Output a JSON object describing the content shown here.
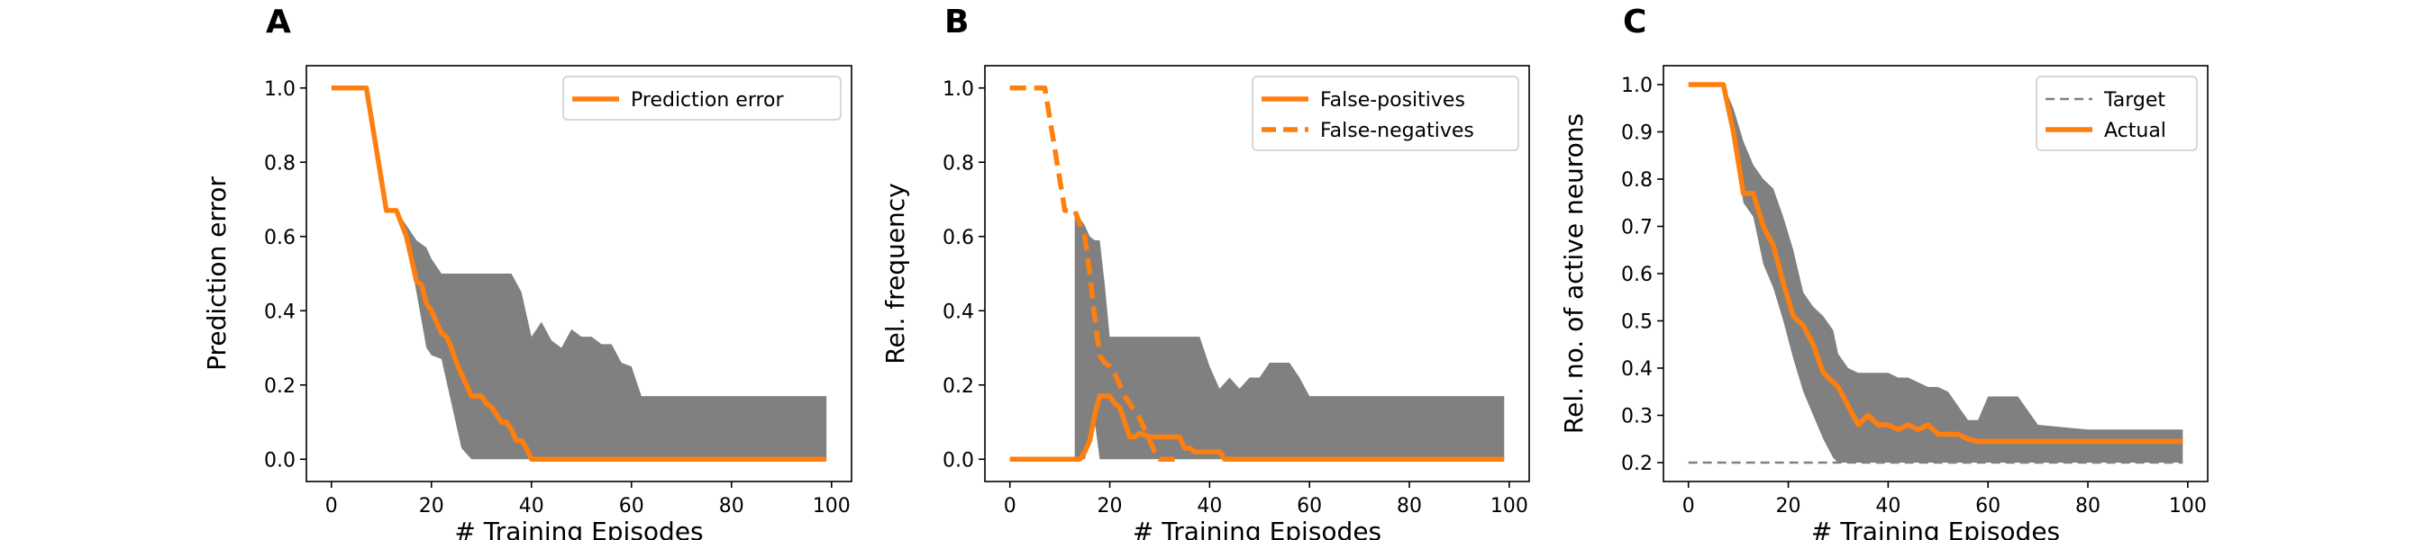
{
  "chart_data": [
    {
      "type": "line",
      "panel_label": "A",
      "ylabel": "Prediction error",
      "xlabel": "# Training Episodes",
      "xlim": [
        -5,
        104
      ],
      "ylim": [
        -0.06,
        1.06
      ],
      "xticks": [
        0,
        20,
        40,
        60,
        80,
        100
      ],
      "xtick_labels": [
        "0",
        "20",
        "40",
        "60",
        "80",
        "100"
      ],
      "yticks": [
        0.0,
        0.2,
        0.4,
        0.6,
        0.8,
        1.0
      ],
      "ytick_labels": [
        "0.0",
        "0.2",
        "0.4",
        "0.6",
        "0.8",
        "1.0"
      ],
      "legend_position": "upper right",
      "bands": [
        {
          "color": "#808080",
          "x": [
            0,
            7,
            11,
            13,
            15,
            17,
            19,
            20,
            22,
            24,
            26,
            28,
            30,
            32,
            34,
            36,
            38,
            40,
            42,
            44,
            46,
            48,
            50,
            52,
            54,
            56,
            58,
            60,
            62,
            70,
            80,
            90,
            99
          ],
          "lower": [
            1.0,
            1.0,
            0.67,
            0.67,
            0.6,
            0.45,
            0.3,
            0.28,
            0.27,
            0.15,
            0.03,
            0.0,
            0.0,
            0.0,
            0.0,
            0.0,
            0.0,
            0.0,
            0.0,
            0.0,
            0.0,
            0.0,
            0.0,
            0.0,
            0.0,
            0.0,
            0.0,
            0.0,
            0.0,
            0.0,
            0.0,
            0.0,
            0.0
          ],
          "upper": [
            1.0,
            1.0,
            0.67,
            0.67,
            0.63,
            0.59,
            0.57,
            0.54,
            0.5,
            0.5,
            0.5,
            0.5,
            0.5,
            0.5,
            0.5,
            0.5,
            0.45,
            0.33,
            0.37,
            0.32,
            0.3,
            0.35,
            0.33,
            0.33,
            0.31,
            0.31,
            0.26,
            0.25,
            0.17,
            0.17,
            0.17,
            0.17,
            0.17
          ]
        }
      ],
      "series": [
        {
          "name": "Prediction error",
          "color": "#ff7f0e",
          "style": "solid",
          "x": [
            0,
            7,
            11,
            13,
            15,
            16,
            17,
            18,
            19,
            20,
            21,
            22,
            23,
            24,
            25,
            26,
            27,
            28,
            29,
            30,
            31,
            32,
            33,
            34,
            35,
            36,
            37,
            38,
            39,
            40,
            41,
            42,
            43,
            50,
            60,
            70,
            80,
            90,
            99
          ],
          "y": [
            1.0,
            1.0,
            0.67,
            0.67,
            0.6,
            0.54,
            0.48,
            0.47,
            0.42,
            0.4,
            0.37,
            0.34,
            0.33,
            0.3,
            0.26,
            0.23,
            0.2,
            0.17,
            0.17,
            0.17,
            0.15,
            0.14,
            0.12,
            0.1,
            0.1,
            0.08,
            0.05,
            0.05,
            0.03,
            0.0,
            0.0,
            0.0,
            0.0,
            0.0,
            0.0,
            0.0,
            0.0,
            0.0,
            0.0
          ]
        }
      ]
    },
    {
      "type": "line",
      "panel_label": "B",
      "ylabel": "Rel. frequency",
      "xlabel": "# Training Episodes",
      "xlim": [
        -5,
        104
      ],
      "ylim": [
        -0.06,
        1.06
      ],
      "xticks": [
        0,
        20,
        40,
        60,
        80,
        100
      ],
      "xtick_labels": [
        "0",
        "20",
        "40",
        "60",
        "80",
        "100"
      ],
      "yticks": [
        0.0,
        0.2,
        0.4,
        0.6,
        0.8,
        1.0
      ],
      "ytick_labels": [
        "0.0",
        "0.2",
        "0.4",
        "0.6",
        "0.8",
        "1.0"
      ],
      "legend_position": "upper right",
      "bands": [
        {
          "color": "#808080",
          "x": [
            13,
            15,
            16,
            17,
            18,
            19,
            20,
            21,
            22,
            23,
            24,
            26,
            28,
            30,
            32,
            34,
            36,
            38,
            40,
            42,
            44,
            46,
            48,
            50,
            52,
            54,
            56,
            58,
            60,
            62,
            70,
            80,
            90,
            99
          ],
          "lower": [
            0.0,
            0.0,
            0.05,
            0.1,
            0.0,
            0.0,
            0.0,
            0.0,
            0.0,
            0.0,
            0.0,
            0.0,
            0.0,
            0.0,
            0.0,
            0.0,
            0.0,
            0.0,
            0.0,
            0.0,
            0.0,
            0.0,
            0.0,
            0.0,
            0.0,
            0.0,
            0.0,
            0.0,
            0.0,
            0.0,
            0.0,
            0.0,
            0.0,
            0.0
          ],
          "upper": [
            0.67,
            0.63,
            0.6,
            0.59,
            0.59,
            0.47,
            0.33,
            0.33,
            0.33,
            0.33,
            0.33,
            0.33,
            0.33,
            0.33,
            0.33,
            0.33,
            0.33,
            0.33,
            0.25,
            0.19,
            0.22,
            0.19,
            0.22,
            0.22,
            0.26,
            0.26,
            0.26,
            0.22,
            0.17,
            0.17,
            0.17,
            0.17,
            0.17,
            0.17
          ]
        }
      ],
      "series": [
        {
          "name": "False-positives",
          "color": "#ff7f0e",
          "style": "solid",
          "x": [
            0,
            14,
            15,
            16,
            17,
            18,
            19,
            20,
            21,
            22,
            23,
            24,
            25,
            26,
            28,
            30,
            32,
            34,
            35,
            36,
            37,
            38,
            39,
            40,
            42,
            43,
            50,
            60,
            70,
            80,
            90,
            99
          ],
          "y": [
            0.0,
            0.0,
            0.02,
            0.05,
            0.12,
            0.17,
            0.17,
            0.17,
            0.15,
            0.14,
            0.1,
            0.06,
            0.06,
            0.07,
            0.06,
            0.06,
            0.06,
            0.06,
            0.03,
            0.03,
            0.02,
            0.02,
            0.02,
            0.02,
            0.02,
            0.0,
            0.0,
            0.0,
            0.0,
            0.0,
            0.0,
            0.0
          ]
        },
        {
          "name": "False-negatives",
          "color": "#ff7f0e",
          "style": "dashed",
          "x": [
            0,
            7,
            11,
            13,
            15,
            16,
            17,
            18,
            19,
            20,
            21,
            22,
            23,
            24,
            25,
            26,
            27,
            28,
            29,
            30,
            31,
            33
          ],
          "y": [
            1.0,
            1.0,
            0.67,
            0.67,
            0.6,
            0.5,
            0.38,
            0.28,
            0.26,
            0.25,
            0.23,
            0.2,
            0.17,
            0.15,
            0.13,
            0.11,
            0.08,
            0.05,
            0.02,
            0.0,
            0.0,
            0.0
          ]
        }
      ]
    },
    {
      "type": "line",
      "panel_label": "C",
      "ylabel": "Rel. no. of active neurons",
      "xlabel": "# Training Episodes",
      "xlim": [
        -5,
        104
      ],
      "ylim": [
        0.16,
        1.04
      ],
      "xticks": [
        0,
        20,
        40,
        60,
        80,
        100
      ],
      "xtick_labels": [
        "0",
        "20",
        "40",
        "60",
        "80",
        "100"
      ],
      "yticks": [
        0.2,
        0.3,
        0.4,
        0.5,
        0.6,
        0.7,
        0.8,
        0.9,
        1.0
      ],
      "ytick_labels": [
        "0.2",
        "0.3",
        "0.4",
        "0.5",
        "0.6",
        "0.7",
        "0.8",
        "0.9",
        "1.0"
      ],
      "legend_position": "upper right",
      "bands": [
        {
          "color": "#808080",
          "x": [
            0,
            7,
            9,
            11,
            13,
            15,
            17,
            19,
            21,
            23,
            25,
            27,
            29,
            30,
            32,
            34,
            36,
            38,
            40,
            42,
            44,
            46,
            48,
            50,
            52,
            54,
            56,
            58,
            60,
            62,
            64,
            66,
            70,
            80,
            90,
            99
          ],
          "lower": [
            1.0,
            1.0,
            0.9,
            0.75,
            0.72,
            0.62,
            0.57,
            0.5,
            0.42,
            0.35,
            0.3,
            0.25,
            0.21,
            0.2,
            0.2,
            0.2,
            0.2,
            0.2,
            0.2,
            0.2,
            0.2,
            0.2,
            0.2,
            0.2,
            0.2,
            0.2,
            0.2,
            0.2,
            0.2,
            0.2,
            0.2,
            0.2,
            0.2,
            0.2,
            0.2,
            0.2
          ],
          "upper": [
            1.0,
            1.0,
            0.95,
            0.88,
            0.83,
            0.8,
            0.78,
            0.72,
            0.65,
            0.56,
            0.53,
            0.51,
            0.48,
            0.43,
            0.4,
            0.39,
            0.39,
            0.39,
            0.39,
            0.38,
            0.38,
            0.37,
            0.36,
            0.36,
            0.35,
            0.32,
            0.29,
            0.29,
            0.34,
            0.34,
            0.34,
            0.34,
            0.28,
            0.27,
            0.27,
            0.27
          ]
        }
      ],
      "series": [
        {
          "name": "Target",
          "color": "#808080",
          "style": "dashed",
          "x": [
            0,
            99
          ],
          "y": [
            0.2,
            0.2
          ]
        },
        {
          "name": "Actual",
          "color": "#ff7f0e",
          "style": "solid",
          "x": [
            0,
            7,
            9,
            11,
            13,
            15,
            17,
            19,
            21,
            23,
            25,
            27,
            29,
            30,
            32,
            34,
            36,
            38,
            40,
            42,
            44,
            46,
            48,
            50,
            52,
            54,
            56,
            58,
            60,
            70,
            80,
            90,
            99
          ],
          "y": [
            1.0,
            1.0,
            0.9,
            0.77,
            0.77,
            0.7,
            0.66,
            0.58,
            0.51,
            0.49,
            0.45,
            0.39,
            0.37,
            0.36,
            0.32,
            0.28,
            0.3,
            0.28,
            0.28,
            0.27,
            0.28,
            0.27,
            0.28,
            0.26,
            0.26,
            0.26,
            0.25,
            0.245,
            0.245,
            0.245,
            0.245,
            0.245,
            0.245
          ]
        }
      ]
    }
  ]
}
